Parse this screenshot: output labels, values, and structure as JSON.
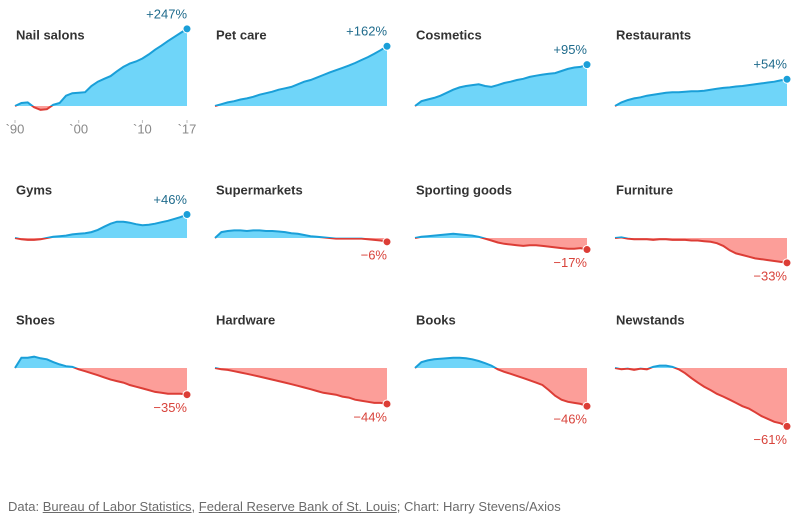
{
  "chart_data": [
    {
      "type": "area",
      "title": "Nail salons",
      "log_scale": true,
      "xlim": [
        1990,
        2017
      ],
      "xticks": [
        {
          "value": 1990,
          "label": "`90"
        },
        {
          "value": 2000,
          "label": "`00"
        },
        {
          "value": 2010,
          "label": "`10"
        },
        {
          "value": 2017,
          "label": "`17"
        }
      ],
      "x": [
        1990,
        1991,
        1992,
        1993,
        1994,
        1995,
        1996,
        1997,
        1998,
        1999,
        2000,
        2001,
        2002,
        2003,
        2004,
        2005,
        2006,
        2007,
        2008,
        2009,
        2010,
        2011,
        2012,
        2013,
        2014,
        2015,
        2016,
        2017
      ],
      "values": [
        0,
        5,
        6,
        -2,
        -6,
        -5,
        2,
        5,
        18,
        23,
        24,
        25,
        38,
        48,
        55,
        62,
        75,
        88,
        98,
        105,
        115,
        130,
        148,
        165,
        185,
        205,
        225,
        247
      ],
      "end_label": "+247%"
    },
    {
      "type": "area",
      "title": "Pet care",
      "log_scale": true,
      "xlim": [
        1990,
        2017
      ],
      "x": [
        1990,
        1991,
        1992,
        1993,
        1994,
        1995,
        1996,
        1997,
        1998,
        1999,
        2000,
        2001,
        2002,
        2003,
        2004,
        2005,
        2006,
        2007,
        2008,
        2009,
        2010,
        2011,
        2012,
        2013,
        2014,
        2015,
        2016,
        2017
      ],
      "values": [
        0,
        3,
        6,
        8,
        11,
        13,
        16,
        20,
        23,
        26,
        30,
        33,
        36,
        42,
        48,
        52,
        58,
        65,
        72,
        78,
        85,
        92,
        100,
        110,
        120,
        132,
        146,
        162
      ],
      "end_label": "+162%"
    },
    {
      "type": "area",
      "title": "Cosmetics",
      "log_scale": true,
      "xlim": [
        1990,
        2017
      ],
      "x": [
        1990,
        1991,
        1992,
        1993,
        1994,
        1995,
        1996,
        1997,
        1998,
        1999,
        2000,
        2001,
        2002,
        2003,
        2004,
        2005,
        2006,
        2007,
        2008,
        2009,
        2010,
        2011,
        2012,
        2013,
        2014,
        2015,
        2016,
        2017
      ],
      "values": [
        0,
        8,
        11,
        14,
        18,
        24,
        30,
        35,
        38,
        40,
        42,
        38,
        36,
        40,
        45,
        48,
        52,
        55,
        60,
        63,
        66,
        68,
        70,
        76,
        82,
        86,
        88,
        95
      ],
      "end_label": "+95%"
    },
    {
      "type": "area",
      "title": "Restaurants",
      "log_scale": true,
      "xlim": [
        1990,
        2017
      ],
      "x": [
        1990,
        1991,
        1992,
        1993,
        1994,
        1995,
        1996,
        1997,
        1998,
        1999,
        2000,
        2001,
        2002,
        2003,
        2004,
        2005,
        2006,
        2007,
        2008,
        2009,
        2010,
        2011,
        2012,
        2013,
        2014,
        2015,
        2016,
        2017
      ],
      "values": [
        0,
        6,
        10,
        13,
        15,
        18,
        20,
        22,
        24,
        25,
        25,
        26,
        27,
        27,
        28,
        30,
        32,
        34,
        35,
        37,
        38,
        40,
        42,
        44,
        46,
        48,
        51,
        54
      ],
      "end_label": "+54%"
    },
    {
      "type": "area",
      "title": "Gyms",
      "log_scale": true,
      "xlim": [
        1990,
        2017
      ],
      "x": [
        1990,
        1991,
        1992,
        1993,
        1994,
        1995,
        1996,
        1997,
        1998,
        1999,
        2000,
        2001,
        2002,
        2003,
        2004,
        2005,
        2006,
        2007,
        2008,
        2009,
        2010,
        2011,
        2012,
        2013,
        2014,
        2015,
        2016,
        2017
      ],
      "values": [
        0,
        -2,
        -3,
        -3,
        -2,
        0,
        2,
        3,
        4,
        6,
        7,
        8,
        10,
        14,
        20,
        26,
        30,
        30,
        28,
        25,
        23,
        24,
        26,
        29,
        32,
        36,
        40,
        46
      ],
      "end_label": "+46%"
    },
    {
      "type": "area",
      "title": "Supermarkets",
      "log_scale": true,
      "xlim": [
        1990,
        2017
      ],
      "x": [
        1990,
        1991,
        1992,
        1993,
        1994,
        1995,
        1996,
        1997,
        1998,
        1999,
        2000,
        2001,
        2002,
        2003,
        2004,
        2005,
        2006,
        2007,
        2008,
        2009,
        2010,
        2011,
        2012,
        2013,
        2014,
        2015,
        2016,
        2017
      ],
      "values": [
        0,
        10,
        12,
        13,
        13,
        12,
        13,
        13,
        12,
        12,
        11,
        10,
        8,
        7,
        5,
        3,
        2,
        1,
        0,
        -1,
        -1,
        -1,
        -1,
        -1,
        -2,
        -3,
        -4,
        -6
      ],
      "end_label": "−6%"
    },
    {
      "type": "area",
      "title": "Sporting goods",
      "log_scale": true,
      "xlim": [
        1990,
        2017
      ],
      "x": [
        1990,
        1991,
        1992,
        1993,
        1994,
        1995,
        1996,
        1997,
        1998,
        1999,
        2000,
        2001,
        2002,
        2003,
        2004,
        2005,
        2006,
        2007,
        2008,
        2009,
        2010,
        2011,
        2012,
        2013,
        2014,
        2015,
        2016,
        2017
      ],
      "values": [
        0,
        2,
        3,
        4,
        5,
        6,
        7,
        6,
        5,
        4,
        2,
        -1,
        -4,
        -7,
        -9,
        -10,
        -11,
        -12,
        -11,
        -11,
        -12,
        -13,
        -14,
        -15,
        -16,
        -16,
        -15,
        -17
      ],
      "end_label": "−17%"
    },
    {
      "type": "area",
      "title": "Furniture",
      "log_scale": true,
      "xlim": [
        1990,
        2017
      ],
      "x": [
        1990,
        1991,
        1992,
        1993,
        1994,
        1995,
        1996,
        1997,
        1998,
        1999,
        2000,
        2001,
        2002,
        2003,
        2004,
        2005,
        2006,
        2007,
        2008,
        2009,
        2010,
        2011,
        2012,
        2013,
        2014,
        2015,
        2016,
        2017
      ],
      "values": [
        0,
        1,
        -1,
        -2,
        -2,
        -2,
        -3,
        -2,
        -2,
        -3,
        -3,
        -3,
        -4,
        -4,
        -5,
        -6,
        -8,
        -12,
        -18,
        -22,
        -24,
        -26,
        -28,
        -29,
        -30,
        -31,
        -32,
        -33
      ],
      "end_label": "−33%"
    },
    {
      "type": "area",
      "title": "Shoes",
      "log_scale": true,
      "xlim": [
        1990,
        2017
      ],
      "x": [
        1990,
        1991,
        1992,
        1993,
        1994,
        1995,
        1996,
        1997,
        1998,
        1999,
        2000,
        2001,
        2002,
        2003,
        2004,
        2005,
        2006,
        2007,
        2008,
        2009,
        2010,
        2011,
        2012,
        2013,
        2014,
        2015,
        2016,
        2017
      ],
      "values": [
        0,
        18,
        18,
        20,
        17,
        15,
        10,
        6,
        3,
        2,
        -2,
        -5,
        -8,
        -11,
        -14,
        -17,
        -19,
        -21,
        -24,
        -26,
        -28,
        -30,
        -32,
        -33,
        -34,
        -34,
        -34,
        -35
      ],
      "end_label": "−35%"
    },
    {
      "type": "area",
      "title": "Hardware",
      "log_scale": true,
      "xlim": [
        1990,
        2017
      ],
      "x": [
        1990,
        1991,
        1992,
        1993,
        1994,
        1995,
        1996,
        1997,
        1998,
        1999,
        2000,
        2001,
        2002,
        2003,
        2004,
        2005,
        2006,
        2007,
        2008,
        2009,
        2010,
        2011,
        2012,
        2013,
        2014,
        2015,
        2016,
        2017
      ],
      "values": [
        0,
        -2,
        -3,
        -5,
        -7,
        -9,
        -11,
        -13,
        -15,
        -17,
        -19,
        -21,
        -23,
        -25,
        -27,
        -29,
        -31,
        -33,
        -34,
        -35,
        -37,
        -38,
        -40,
        -41,
        -42,
        -43,
        -43,
        -44
      ],
      "end_label": "−44%"
    },
    {
      "type": "area",
      "title": "Books",
      "log_scale": true,
      "xlim": [
        1990,
        2017
      ],
      "x": [
        1990,
        1991,
        1992,
        1993,
        1994,
        1995,
        1996,
        1997,
        1998,
        1999,
        2000,
        2001,
        2002,
        2003,
        2004,
        2005,
        2006,
        2007,
        2008,
        2009,
        2010,
        2011,
        2012,
        2013,
        2014,
        2015,
        2016,
        2017
      ],
      "values": [
        0,
        10,
        13,
        15,
        16,
        17,
        18,
        18,
        17,
        15,
        12,
        8,
        4,
        -2,
        -6,
        -9,
        -12,
        -15,
        -18,
        -21,
        -24,
        -30,
        -36,
        -40,
        -42,
        -43,
        -44,
        -46
      ],
      "end_label": "−46%"
    },
    {
      "type": "area",
      "title": "Newstands",
      "log_scale": true,
      "xlim": [
        1990,
        2017
      ],
      "x": [
        1990,
        1991,
        1992,
        1993,
        1994,
        1995,
        1996,
        1997,
        1998,
        1999,
        2000,
        2001,
        2002,
        2003,
        2004,
        2005,
        2006,
        2007,
        2008,
        2009,
        2010,
        2011,
        2012,
        2013,
        2014,
        2015,
        2016,
        2017
      ],
      "values": [
        0,
        -2,
        -1,
        -3,
        -1,
        -2,
        2,
        4,
        4,
        2,
        -2,
        -8,
        -15,
        -21,
        -26,
        -30,
        -34,
        -37,
        -40,
        -43,
        -46,
        -48,
        -51,
        -54,
        -56,
        -58,
        -59,
        -61
      ],
      "end_label": "−61%"
    }
  ],
  "colors": {
    "up_fill": "#6fd5f9",
    "up_line": "#1a9fd8",
    "down_fill": "#fc9e99",
    "down_line": "#dc3d36",
    "up_text": "#1f6b8c",
    "down_text": "#d8433b"
  },
  "footer": [
    {
      "text": "Data: "
    },
    {
      "text": "Bureau of Labor Statistics",
      "link": true
    },
    {
      "text": ", "
    },
    {
      "text": "Federal Reserve Bank of St. Louis",
      "link": true
    },
    {
      "text": "; Chart: Harry Stevens/Axios"
    }
  ]
}
